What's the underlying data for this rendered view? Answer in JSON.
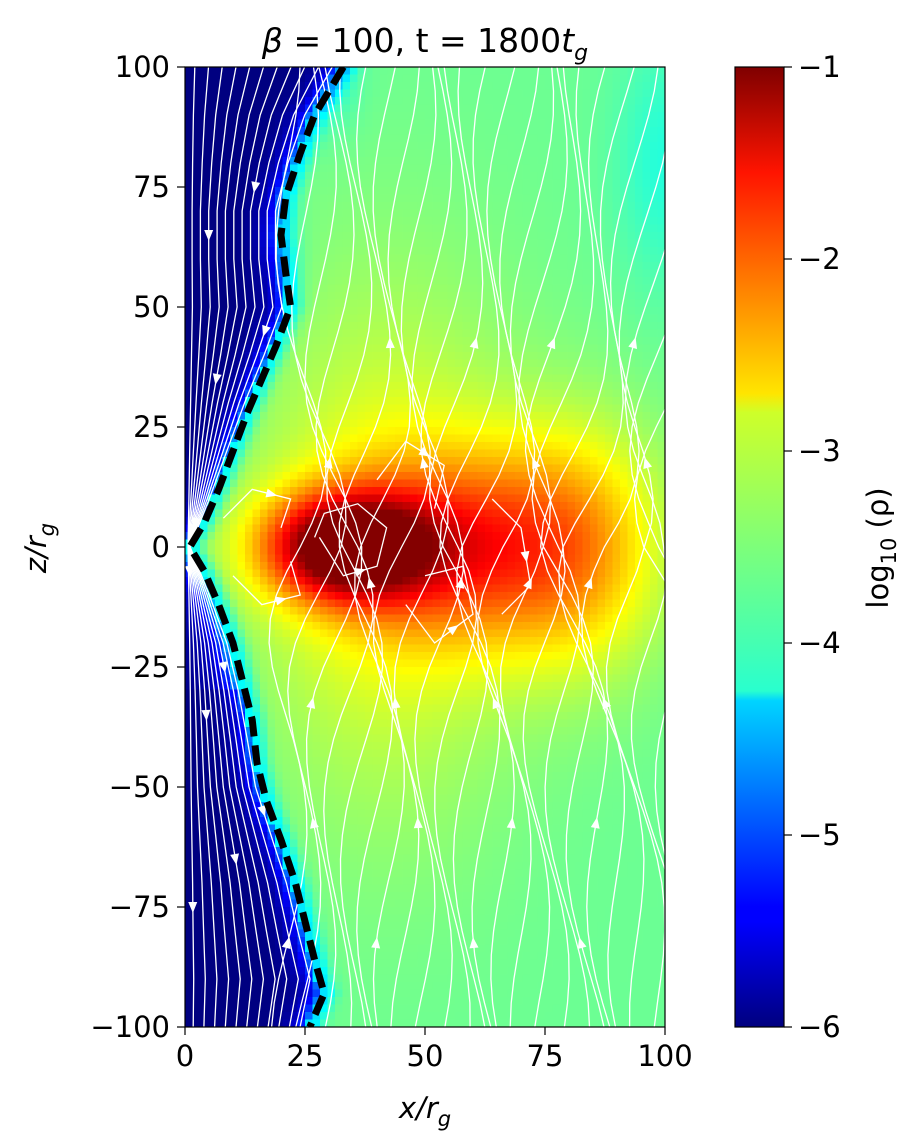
{
  "chart_data": {
    "type": "heatmap",
    "title": "β = 100, t = 1800t_g",
    "title_parts": {
      "beta": "β",
      "beta_value": " = 100, t = 1800",
      "t": "t",
      "t_sub": "g"
    },
    "xlabel": "x/r_g",
    "xlabel_parts": {
      "x": "x",
      "r": "/r",
      "sub": "g"
    },
    "ylabel": "z/r_g",
    "ylabel_parts": {
      "z": "z",
      "r": "/r",
      "sub": "g"
    },
    "xlim": [
      0,
      100
    ],
    "ylim": [
      -100,
      100
    ],
    "x_ticks": [
      0,
      25,
      50,
      75,
      100
    ],
    "x_tick_labels": [
      "0",
      "25",
      "50",
      "75",
      "100"
    ],
    "y_ticks": [
      100,
      75,
      50,
      25,
      0,
      -25,
      -50,
      -75,
      -100
    ],
    "y_tick_labels": [
      "100",
      "75",
      "50",
      "25",
      "0",
      "−25",
      "−50",
      "−75",
      "−100"
    ],
    "colormap": "jet",
    "colorbar": {
      "label": "log10 (ρ)",
      "label_parts": {
        "log": "log",
        "sub": "10",
        "rho": " (ρ)"
      },
      "range": [
        -6,
        -1
      ],
      "ticks": [
        -1,
        -2,
        -3,
        -4,
        -5,
        -6
      ],
      "tick_labels": [
        "−1",
        "−2",
        "−3",
        "−4",
        "−5",
        "−6"
      ]
    },
    "density_features": {
      "background_log_rho": -3.6,
      "disk_peak_log_rho": -1.1,
      "disk_peak_location": {
        "x": 33,
        "z": 0
      },
      "funnel_log_rho": -6
    },
    "boundary_curve": {
      "style": "black-dashed",
      "points": [
        [
          33,
          100
        ],
        [
          27,
          90
        ],
        [
          24,
          82
        ],
        [
          21,
          73
        ],
        [
          20,
          65
        ],
        [
          21,
          57
        ],
        [
          22,
          50
        ],
        [
          19,
          42
        ],
        [
          16,
          35
        ],
        [
          13,
          28
        ],
        [
          10,
          20
        ],
        [
          7,
          12
        ],
        [
          4,
          5
        ],
        [
          1,
          0
        ],
        [
          4,
          -5
        ],
        [
          7,
          -12
        ],
        [
          10,
          -20
        ],
        [
          12,
          -28
        ],
        [
          14,
          -36
        ],
        [
          15,
          -45
        ],
        [
          17,
          -53
        ],
        [
          20,
          -61
        ],
        [
          23,
          -70
        ],
        [
          25,
          -78
        ],
        [
          27,
          -86
        ],
        [
          29,
          -93
        ],
        [
          26,
          -100
        ]
      ]
    },
    "streamlines": {
      "color": "#ffffff",
      "description": "magnetic field lines"
    }
  }
}
